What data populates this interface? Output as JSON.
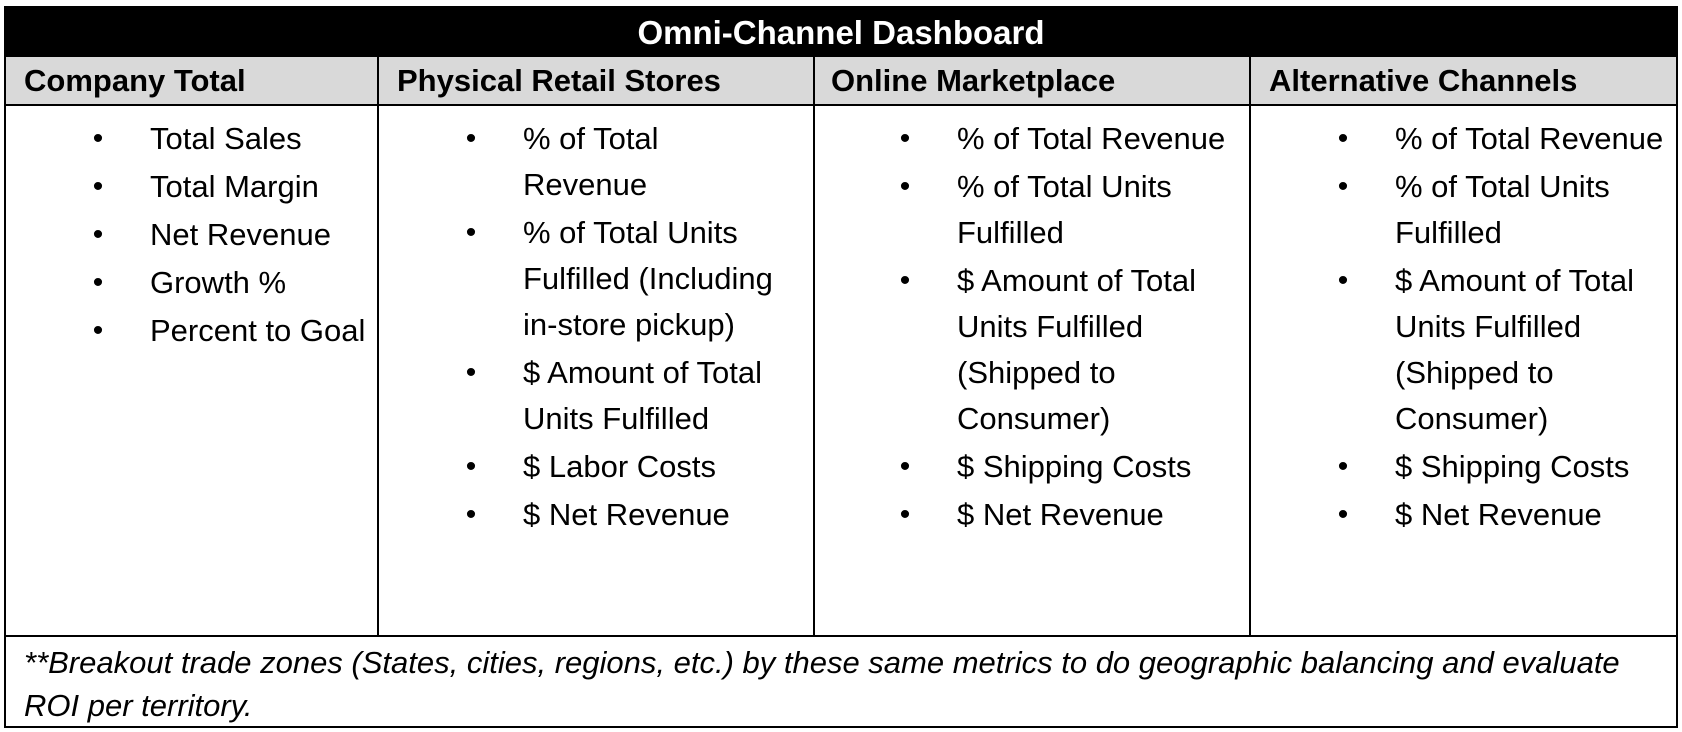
{
  "title": "Omni-Channel Dashboard",
  "columns": [
    {
      "header": "Company Total",
      "items": [
        "Total Sales",
        "Total Margin",
        "Net Revenue",
        "Growth %",
        "Percent to Goal"
      ]
    },
    {
      "header": "Physical Retail Stores",
      "items": [
        "% of Total Revenue",
        "% of Total Units Fulfilled (Including in-store pickup)",
        "$ Amount of Total Units Fulfilled",
        "$ Labor Costs",
        "$ Net Revenue"
      ]
    },
    {
      "header": "Online Marketplace",
      "items": [
        "% of Total Revenue",
        "% of Total Units Fulfilled",
        "$ Amount of Total Units Fulfilled (Shipped to Consumer)",
        "$ Shipping Costs",
        "$ Net Revenue"
      ]
    },
    {
      "header": "Alternative Channels",
      "items": [
        "% of Total Revenue",
        "% of Total Units Fulfilled",
        "$ Amount of Total Units Fulfilled (Shipped to Consumer)",
        "$ Shipping Costs",
        "$ Net Revenue"
      ]
    }
  ],
  "footnote": "**Breakout trade zones (States, cities, regions, etc.) by these same metrics to do geographic balancing and evaluate ROI per territory."
}
